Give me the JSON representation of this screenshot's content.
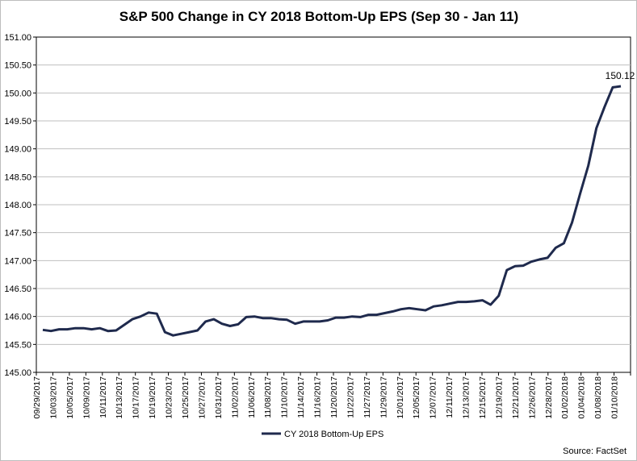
{
  "chart_data": {
    "type": "line",
    "title": "S&P 500 Change in CY 2018 Bottom-Up EPS (Sep 30 - Jan 11)",
    "source": "Source: FactSet",
    "ylim": [
      145.0,
      151.0
    ],
    "yticks": [
      "145.00",
      "145.50",
      "146.00",
      "146.50",
      "147.00",
      "147.50",
      "148.00",
      "148.50",
      "149.00",
      "149.50",
      "150.00",
      "150.50",
      "151.00"
    ],
    "grid": true,
    "legend_position": "bottom-center",
    "x_tick_labels": [
      "09/29/2017",
      "10/03/2017",
      "10/05/2017",
      "10/09/2017",
      "10/11/2017",
      "10/13/2017",
      "10/17/2017",
      "10/19/2017",
      "10/23/2017",
      "10/25/2017",
      "10/27/2017",
      "10/31/2017",
      "11/02/2017",
      "11/06/2017",
      "11/08/2017",
      "11/10/2017",
      "11/14/2017",
      "11/16/2017",
      "11/20/2017",
      "11/22/2017",
      "11/27/2017",
      "11/29/2017",
      "12/01/2017",
      "12/05/2017",
      "12/07/2017",
      "12/11/2017",
      "12/13/2017",
      "12/15/2017",
      "12/19/2017",
      "12/21/2017",
      "12/26/2017",
      "12/28/2017",
      "01/02/2018",
      "01/04/2018",
      "01/08/2018",
      "01/10/2018"
    ],
    "series": [
      {
        "name": "CY 2018 Bottom-Up EPS",
        "color": "#1f2a4d",
        "values": [
          145.76,
          145.74,
          145.77,
          145.77,
          145.79,
          145.79,
          145.77,
          145.79,
          145.74,
          145.75,
          145.85,
          145.95,
          146.0,
          146.07,
          146.05,
          145.72,
          145.66,
          145.69,
          145.72,
          145.75,
          145.91,
          145.95,
          145.87,
          145.83,
          145.86,
          145.99,
          146.0,
          145.97,
          145.97,
          145.95,
          145.94,
          145.87,
          145.91,
          145.91,
          145.91,
          145.93,
          145.98,
          145.98,
          146.0,
          145.99,
          146.03,
          146.03,
          146.06,
          146.09,
          146.13,
          146.15,
          146.13,
          146.11,
          146.18,
          146.2,
          146.23,
          146.26,
          146.26,
          146.27,
          146.29,
          146.21,
          146.37,
          146.83,
          146.9,
          146.91,
          146.98,
          147.02,
          147.05,
          147.23,
          147.31,
          147.68,
          148.2,
          148.7,
          149.37,
          149.75,
          150.1,
          150.12
        ]
      }
    ],
    "end_label": "150.12"
  }
}
